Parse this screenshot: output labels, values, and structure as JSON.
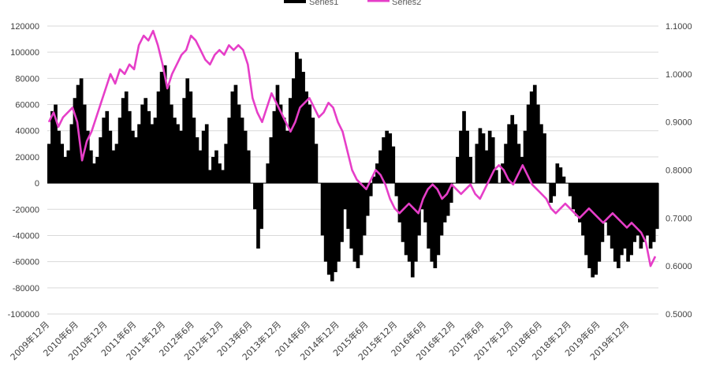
{
  "chart_data": {
    "type": "bar+line",
    "title": "",
    "legend": {
      "placement": "top-center",
      "entries": [
        {
          "name": "Series1",
          "color": "#000000",
          "kind": "bar"
        },
        {
          "name": "Series2",
          "color": "#e63ec8",
          "kind": "line"
        }
      ]
    },
    "grid": true,
    "y_left": {
      "range": [
        -100000,
        120000
      ],
      "ticks": [
        "120000",
        "100000",
        "80000",
        "60000",
        "40000",
        "20000",
        "0",
        "-20000",
        "-40000",
        "-60000",
        "-80000",
        "-100000"
      ]
    },
    "y_right": {
      "range": [
        0.5,
        1.1
      ],
      "ticks": [
        "1.1000",
        "1.0000",
        "0.9000",
        "0.8000",
        "0.7000",
        "0.6000",
        "0.5000"
      ]
    },
    "x_ticks": [
      "2009年12月",
      "2010年6月",
      "2010年12月",
      "2011年6月",
      "2011年12月",
      "2012年6月",
      "2012年12月",
      "2013年6月",
      "2013年12月",
      "2014年6月",
      "2014年12月",
      "2015年6月",
      "2015年12月",
      "2016年6月",
      "2016年12月",
      "2017年6月",
      "2017年12月",
      "2018年6月",
      "2018年12月",
      "2019年6月",
      "2019年12月"
    ],
    "series": [
      {
        "name": "Series1",
        "kind": "bar",
        "axis": "left",
        "x_range": [
          "2009-12",
          "2020-04"
        ],
        "values": [
          30000,
          55000,
          60000,
          40000,
          30000,
          20000,
          25000,
          45000,
          65000,
          75000,
          80000,
          60000,
          40000,
          25000,
          15000,
          20000,
          35000,
          50000,
          55000,
          40000,
          25000,
          30000,
          50000,
          65000,
          70000,
          55000,
          40000,
          35000,
          45000,
          60000,
          65000,
          55000,
          45000,
          50000,
          70000,
          85000,
          90000,
          75000,
          60000,
          50000,
          45000,
          40000,
          65000,
          80000,
          70000,
          50000,
          35000,
          25000,
          40000,
          45000,
          10000,
          20000,
          25000,
          15000,
          10000,
          30000,
          50000,
          70000,
          75000,
          60000,
          50000,
          40000,
          25000,
          0,
          -20000,
          -50000,
          -35000,
          0,
          15000,
          35000,
          55000,
          75000,
          60000,
          50000,
          40000,
          65000,
          80000,
          100000,
          95000,
          85000,
          70000,
          60000,
          50000,
          30000,
          0,
          -40000,
          -60000,
          -70000,
          -75000,
          -68000,
          -60000,
          -45000,
          -20000,
          -35000,
          -50000,
          -60000,
          -65000,
          -55000,
          -40000,
          -25000,
          -10000,
          5000,
          15000,
          25000,
          35000,
          40000,
          38000,
          28000,
          -10000,
          -30000,
          -45000,
          -55000,
          -60000,
          -72000,
          -60000,
          -40000,
          -20000,
          -30000,
          -50000,
          -60000,
          -65000,
          -55000,
          -40000,
          -30000,
          -25000,
          -15000,
          0,
          20000,
          40000,
          55000,
          40000,
          20000,
          0,
          30000,
          42000,
          38000,
          25000,
          40000,
          35000,
          10000,
          0,
          15000,
          30000,
          45000,
          52000,
          45000,
          30000,
          20000,
          40000,
          60000,
          70000,
          75000,
          60000,
          45000,
          38000,
          0,
          -15000,
          -10000,
          15000,
          12000,
          5000,
          0,
          -10000,
          -20000,
          -25000,
          -30000,
          -40000,
          -55000,
          -65000,
          -72000,
          -70000,
          -60000,
          -45000,
          -30000,
          -40000,
          -50000,
          -60000,
          -65000,
          -55000,
          -50000,
          -60000,
          -55000,
          -45000,
          -40000,
          -50000,
          -45000,
          -40000,
          -50000,
          -45000,
          -35000
        ]
      },
      {
        "name": "Series2",
        "kind": "line",
        "axis": "right",
        "x_range": [
          "2009-12",
          "2020-04"
        ],
        "values": [
          0.9,
          0.92,
          0.89,
          0.91,
          0.92,
          0.93,
          0.9,
          0.82,
          0.86,
          0.88,
          0.91,
          0.94,
          0.97,
          1.0,
          0.98,
          1.01,
          1.0,
          1.02,
          1.01,
          1.06,
          1.08,
          1.07,
          1.09,
          1.06,
          1.02,
          0.97,
          1.0,
          1.02,
          1.04,
          1.05,
          1.08,
          1.07,
          1.05,
          1.03,
          1.02,
          1.04,
          1.05,
          1.04,
          1.06,
          1.05,
          1.06,
          1.05,
          1.02,
          0.95,
          0.92,
          0.9,
          0.93,
          0.96,
          0.94,
          0.92,
          0.9,
          0.88,
          0.9,
          0.93,
          0.94,
          0.95,
          0.93,
          0.91,
          0.92,
          0.94,
          0.93,
          0.9,
          0.88,
          0.84,
          0.8,
          0.78,
          0.77,
          0.76,
          0.78,
          0.8,
          0.79,
          0.77,
          0.74,
          0.72,
          0.71,
          0.72,
          0.73,
          0.72,
          0.71,
          0.74,
          0.76,
          0.77,
          0.76,
          0.74,
          0.75,
          0.77,
          0.76,
          0.75,
          0.76,
          0.77,
          0.75,
          0.74,
          0.76,
          0.78,
          0.8,
          0.81,
          0.8,
          0.78,
          0.77,
          0.79,
          0.81,
          0.79,
          0.77,
          0.76,
          0.75,
          0.74,
          0.72,
          0.71,
          0.72,
          0.73,
          0.72,
          0.71,
          0.7,
          0.71,
          0.72,
          0.71,
          0.7,
          0.69,
          0.7,
          0.71,
          0.7,
          0.69,
          0.68,
          0.69,
          0.68,
          0.67,
          0.65,
          0.6,
          0.62
        ]
      }
    ]
  }
}
